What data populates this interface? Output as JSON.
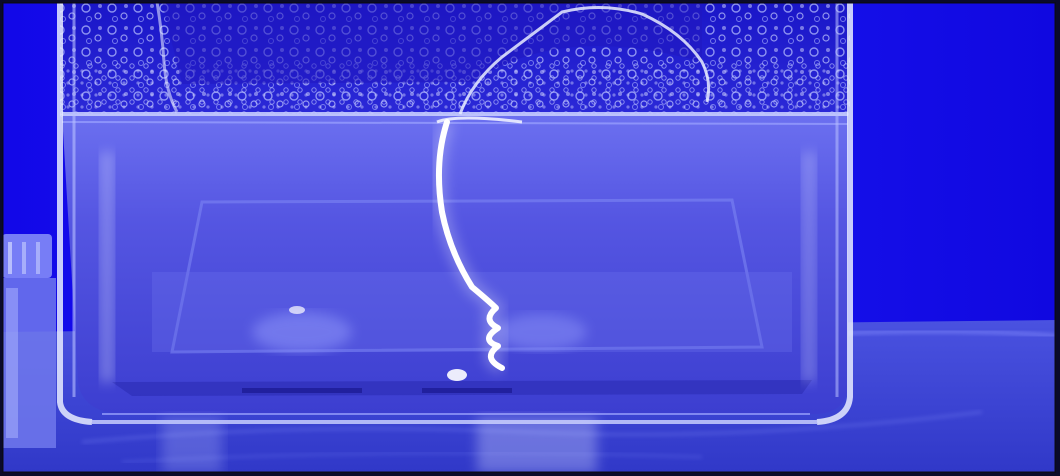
{
  "scene": {
    "subject": "glass-water-tank-with-worm",
    "colors": {
      "background": "#1a14f0",
      "water": "#5a5ae8",
      "glass_highlight": "#e8ecff",
      "condensation": "#8890ff",
      "worm": "#f4f6ff",
      "surface": "#3c44d8"
    }
  }
}
